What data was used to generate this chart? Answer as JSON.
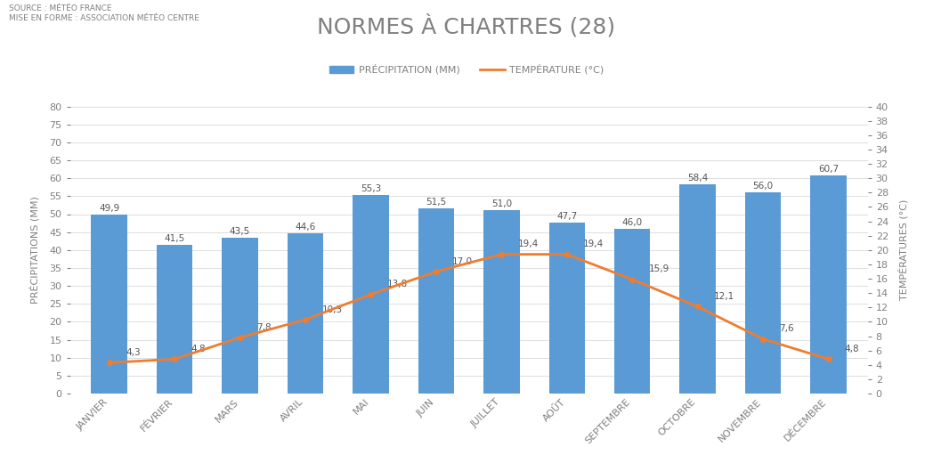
{
  "title": "NORMES À CHARTRES (28)",
  "source_text": "SOURCE : MÉTÉO FRANCE\nMISE EN FORME : ASSOCIATION MÉTÉO CENTRE",
  "months": [
    "JANVIER",
    "FÉVRIER",
    "MARS",
    "AVRIL",
    "MAI",
    "JUIN",
    "JUILLET",
    "AOÛT",
    "SEPTEMBRE",
    "OCTOBRE",
    "NOVEMBRE",
    "DÉCEMBRE"
  ],
  "precipitation": [
    49.9,
    41.5,
    43.5,
    44.6,
    55.3,
    51.5,
    51.0,
    47.7,
    46.0,
    58.4,
    56.0,
    60.7
  ],
  "temperature": [
    4.3,
    4.8,
    7.8,
    10.3,
    13.8,
    17.0,
    19.4,
    19.4,
    15.9,
    12.1,
    7.6,
    4.8
  ],
  "bar_color": "#5B9BD5",
  "line_color": "#ED7D31",
  "precip_ylabel": "PRÉCIPITATIONS (MM)",
  "temp_ylabel": "TEMPÉRATURES (°C)",
  "precip_legend": "PRÉCIPITATION (MM)",
  "temp_legend": "TEMPÉRATURE (°C)",
  "ylim_precip": [
    0,
    80
  ],
  "ylim_temp": [
    0,
    40
  ],
  "yticks_precip": [
    0,
    5,
    10,
    15,
    20,
    25,
    30,
    35,
    40,
    45,
    50,
    55,
    60,
    65,
    70,
    75,
    80
  ],
  "yticks_temp": [
    0,
    2,
    4,
    6,
    8,
    10,
    12,
    14,
    16,
    18,
    20,
    22,
    24,
    26,
    28,
    30,
    32,
    34,
    36,
    38,
    40
  ],
  "background_color": "#FFFFFF",
  "grid_color": "#D0D0D0",
  "title_color": "#808080",
  "source_color": "#808080",
  "label_color": "#555555",
  "tick_color": "#808080"
}
